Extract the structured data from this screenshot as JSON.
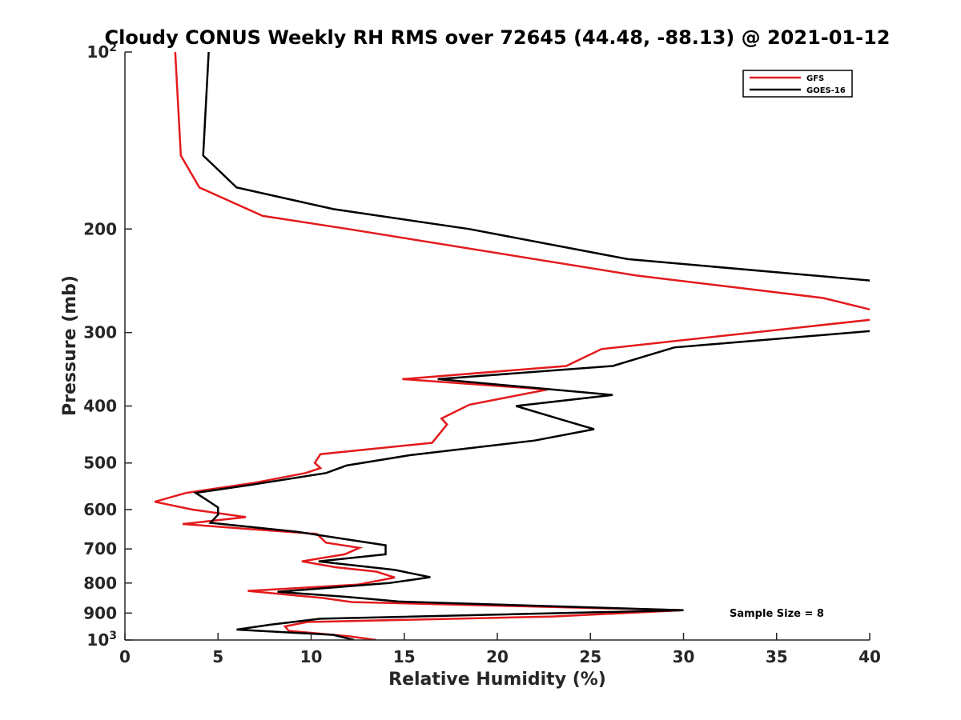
{
  "chart_data": {
    "type": "line",
    "title": "Cloudy CONUS Weekly RH RMS over 72645 (44.48, -88.13) @ 2021-01-12",
    "xlabel": "Relative Humidity (%)",
    "ylabel": "Pressure (mb)",
    "xlim": [
      0,
      40
    ],
    "ylim": [
      100,
      1000
    ],
    "yscale": "log",
    "y_reversed": true,
    "x_ticks": [
      0,
      5,
      10,
      15,
      20,
      25,
      30,
      35,
      40
    ],
    "y_ticks": [
      {
        "value": 100,
        "base": "10",
        "exp": "2"
      },
      {
        "value": 200,
        "label": "200"
      },
      {
        "value": 300,
        "label": "300"
      },
      {
        "value": 400,
        "label": "400"
      },
      {
        "value": 500,
        "label": "500"
      },
      {
        "value": 600,
        "label": "600"
      },
      {
        "value": 700,
        "label": "700"
      },
      {
        "value": 800,
        "label": "800"
      },
      {
        "value": 900,
        "label": "900"
      },
      {
        "value": 1000,
        "base": "10",
        "exp": "3"
      }
    ],
    "grid": false,
    "legend_position": "top-right",
    "annotation": "Sample Size = 8",
    "series": [
      {
        "name": "GFS",
        "color": "#e31a1c",
        "points": [
          [
            2.7,
            100
          ],
          [
            3.0,
            150
          ],
          [
            4.0,
            170
          ],
          [
            7.4,
            190
          ],
          [
            12.0,
            200
          ],
          [
            27.5,
            240
          ],
          [
            37.5,
            262
          ],
          [
            40.2,
            275
          ],
          [
            40.2,
            285
          ],
          [
            25.6,
            320
          ],
          [
            23.7,
            342
          ],
          [
            14.9,
            360
          ],
          [
            22.7,
            375
          ],
          [
            18.5,
            398
          ],
          [
            17.0,
            420
          ],
          [
            17.3,
            430
          ],
          [
            16.5,
            462
          ],
          [
            10.5,
            483
          ],
          [
            10.2,
            500
          ],
          [
            10.5,
            510
          ],
          [
            9.7,
            520
          ],
          [
            7.0,
            540
          ],
          [
            3.3,
            562
          ],
          [
            1.6,
            582
          ],
          [
            3.6,
            600
          ],
          [
            6.5,
            618
          ],
          [
            3.1,
            635
          ],
          [
            6.8,
            648
          ],
          [
            10.3,
            660
          ],
          [
            10.8,
            683
          ],
          [
            12.6,
            697
          ],
          [
            11.8,
            715
          ],
          [
            9.5,
            735
          ],
          [
            11.3,
            752
          ],
          [
            13.5,
            765
          ],
          [
            14.5,
            783
          ],
          [
            12.5,
            805
          ],
          [
            6.6,
            825
          ],
          [
            10.6,
            848
          ],
          [
            12.2,
            862
          ],
          [
            30.0,
            890
          ],
          [
            23.0,
            912
          ],
          [
            9.8,
            932
          ],
          [
            8.6,
            948
          ],
          [
            8.8,
            965
          ],
          [
            12.0,
            985
          ],
          [
            13.5,
            1000
          ]
        ]
      },
      {
        "name": "GOES-16",
        "color": "#000000",
        "points": [
          [
            4.5,
            100
          ],
          [
            4.2,
            150
          ],
          [
            6.0,
            170
          ],
          [
            11.2,
            185
          ],
          [
            18.5,
            200
          ],
          [
            27.0,
            225
          ],
          [
            40.2,
            245
          ],
          [
            40.2,
            298
          ],
          [
            29.5,
            318
          ],
          [
            26.2,
            342
          ],
          [
            16.8,
            360
          ],
          [
            26.2,
            383
          ],
          [
            21.0,
            400
          ],
          [
            23.8,
            425
          ],
          [
            25.2,
            438
          ],
          [
            22.0,
            458
          ],
          [
            15.3,
            485
          ],
          [
            11.9,
            505
          ],
          [
            10.8,
            520
          ],
          [
            6.7,
            545
          ],
          [
            3.8,
            562
          ],
          [
            4.4,
            578
          ],
          [
            5.0,
            595
          ],
          [
            5.0,
            612
          ],
          [
            4.6,
            632
          ],
          [
            9.3,
            655
          ],
          [
            12.0,
            675
          ],
          [
            14.0,
            690
          ],
          [
            14.0,
            715
          ],
          [
            10.4,
            735
          ],
          [
            14.5,
            760
          ],
          [
            16.4,
            782
          ],
          [
            14.2,
            800
          ],
          [
            8.2,
            828
          ],
          [
            12.0,
            845
          ],
          [
            14.7,
            860
          ],
          [
            30.0,
            890
          ],
          [
            10.5,
            920
          ],
          [
            7.8,
            942
          ],
          [
            6.0,
            960
          ],
          [
            11.2,
            980
          ],
          [
            12.3,
            1000
          ]
        ]
      }
    ]
  }
}
